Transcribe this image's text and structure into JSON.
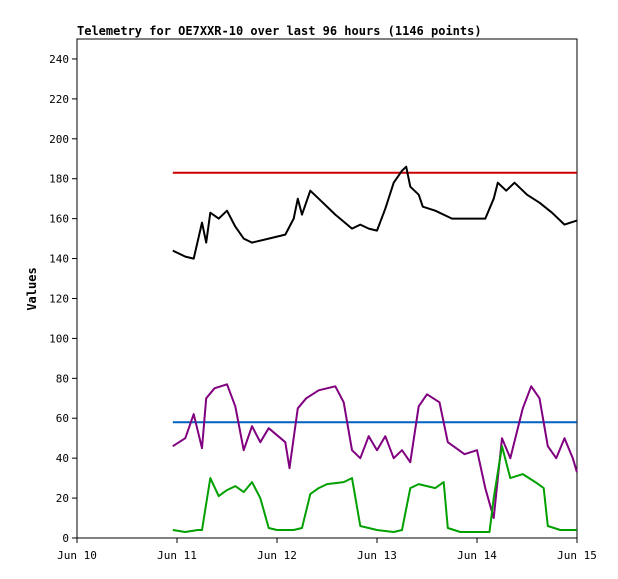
{
  "chart_data": {
    "type": "line",
    "title": "Telemetry for OE7XXR-10 over last 96 hours (1146 points)",
    "xlabel": "",
    "ylabel": "Values",
    "ylim": [
      0,
      250
    ],
    "xlim": [
      "Jun 10",
      "Jun 15"
    ],
    "x_ticks": [
      "Jun 10",
      "Jun 11",
      "Jun 12",
      "Jun 13",
      "Jun 14",
      "Jun 15"
    ],
    "y_ticks": [
      0,
      20,
      40,
      60,
      80,
      100,
      120,
      140,
      160,
      180,
      200,
      220,
      240
    ],
    "grid": false,
    "legend": "none",
    "series": [
      {
        "color": "#cc0000",
        "points": [
          [
            "Jun 10 23:00",
            183
          ],
          [
            "Jun 14 23:58",
            183
          ]
        ]
      },
      {
        "color": "#0060c0",
        "points": [
          [
            "Jun 10 23:00",
            58
          ],
          [
            "Jun 14 23:58",
            58
          ]
        ]
      },
      {
        "color": "#000000",
        "points": [
          [
            "Jun 10 23:00",
            144
          ],
          [
            "Jun 11 02:00",
            141
          ],
          [
            "Jun 11 04:00",
            140
          ],
          [
            "Jun 11 06:00",
            158
          ],
          [
            "Jun 11 07:00",
            148
          ],
          [
            "Jun 11 08:00",
            163
          ],
          [
            "Jun 11 10:00",
            160
          ],
          [
            "Jun 11 12:00",
            164
          ],
          [
            "Jun 11 14:00",
            156
          ],
          [
            "Jun 11 16:00",
            150
          ],
          [
            "Jun 11 18:00",
            148
          ],
          [
            "Jun 11 22:00",
            150
          ],
          [
            "Jun 12 02:00",
            152
          ],
          [
            "Jun 12 04:00",
            160
          ],
          [
            "Jun 12 05:00",
            170
          ],
          [
            "Jun 12 06:00",
            162
          ],
          [
            "Jun 12 08:00",
            174
          ],
          [
            "Jun 12 10:00",
            170
          ],
          [
            "Jun 12 14:00",
            162
          ],
          [
            "Jun 12 18:00",
            155
          ],
          [
            "Jun 12 20:00",
            157
          ],
          [
            "Jun 12 22:00",
            155
          ],
          [
            "Jun 13 00:00",
            154
          ],
          [
            "Jun 13 02:00",
            165
          ],
          [
            "Jun 13 04:00",
            178
          ],
          [
            "Jun 13 06:00",
            184
          ],
          [
            "Jun 13 07:00",
            186
          ],
          [
            "Jun 13 08:00",
            176
          ],
          [
            "Jun 13 10:00",
            172
          ],
          [
            "Jun 13 11:00",
            166
          ],
          [
            "Jun 13 14:00",
            164
          ],
          [
            "Jun 13 18:00",
            160
          ],
          [
            "Jun 13 22:00",
            160
          ],
          [
            "Jun 14 02:00",
            160
          ],
          [
            "Jun 14 04:00",
            170
          ],
          [
            "Jun 14 05:00",
            178
          ],
          [
            "Jun 14 07:00",
            174
          ],
          [
            "Jun 14 09:00",
            178
          ],
          [
            "Jun 14 12:00",
            172
          ],
          [
            "Jun 14 15:00",
            168
          ],
          [
            "Jun 14 18:00",
            163
          ],
          [
            "Jun 14 21:00",
            157
          ],
          [
            "Jun 14 23:58",
            159
          ]
        ]
      },
      {
        "color": "#800080",
        "points": [
          [
            "Jun 10 23:00",
            46
          ],
          [
            "Jun 11 02:00",
            50
          ],
          [
            "Jun 11 04:00",
            62
          ],
          [
            "Jun 11 06:00",
            45
          ],
          [
            "Jun 11 07:00",
            70
          ],
          [
            "Jun 11 09:00",
            75
          ],
          [
            "Jun 11 12:00",
            77
          ],
          [
            "Jun 11 14:00",
            66
          ],
          [
            "Jun 11 16:00",
            44
          ],
          [
            "Jun 11 18:00",
            56
          ],
          [
            "Jun 11 20:00",
            48
          ],
          [
            "Jun 11 22:00",
            55
          ],
          [
            "Jun 12 02:00",
            48
          ],
          [
            "Jun 12 03:00",
            35
          ],
          [
            "Jun 12 05:00",
            65
          ],
          [
            "Jun 12 07:00",
            70
          ],
          [
            "Jun 12 10:00",
            74
          ],
          [
            "Jun 12 14:00",
            76
          ],
          [
            "Jun 12 16:00",
            68
          ],
          [
            "Jun 12 18:00",
            44
          ],
          [
            "Jun 12 20:00",
            40
          ],
          [
            "Jun 12 22:00",
            51
          ],
          [
            "Jun 13 00:00",
            44
          ],
          [
            "Jun 13 02:00",
            51
          ],
          [
            "Jun 13 04:00",
            40
          ],
          [
            "Jun 13 06:00",
            44
          ],
          [
            "Jun 13 08:00",
            38
          ],
          [
            "Jun 13 10:00",
            66
          ],
          [
            "Jun 13 12:00",
            72
          ],
          [
            "Jun 13 15:00",
            68
          ],
          [
            "Jun 13 17:00",
            48
          ],
          [
            "Jun 13 19:00",
            45
          ],
          [
            "Jun 13 21:00",
            42
          ],
          [
            "Jun 14 00:00",
            44
          ],
          [
            "Jun 14 02:00",
            25
          ],
          [
            "Jun 14 04:00",
            10
          ],
          [
            "Jun 14 06:00",
            50
          ],
          [
            "Jun 14 08:00",
            40
          ],
          [
            "Jun 14 11:00",
            65
          ],
          [
            "Jun 14 13:00",
            76
          ],
          [
            "Jun 14 15:00",
            70
          ],
          [
            "Jun 14 17:00",
            46
          ],
          [
            "Jun 14 19:00",
            40
          ],
          [
            "Jun 14 21:00",
            50
          ],
          [
            "Jun 14 23:00",
            40
          ],
          [
            "Jun 14 23:58",
            33
          ]
        ]
      },
      {
        "color": "#00a000",
        "points": [
          [
            "Jun 10 23:00",
            4
          ],
          [
            "Jun 11 02:00",
            3
          ],
          [
            "Jun 11 05:00",
            4
          ],
          [
            "Jun 11 06:00",
            4
          ],
          [
            "Jun 11 08:00",
            30
          ],
          [
            "Jun 11 10:00",
            21
          ],
          [
            "Jun 11 12:00",
            24
          ],
          [
            "Jun 11 14:00",
            26
          ],
          [
            "Jun 11 16:00",
            23
          ],
          [
            "Jun 11 18:00",
            28
          ],
          [
            "Jun 11 20:00",
            20
          ],
          [
            "Jun 11 22:00",
            5
          ],
          [
            "Jun 12 00:00",
            4
          ],
          [
            "Jun 12 04:00",
            4
          ],
          [
            "Jun 12 06:00",
            5
          ],
          [
            "Jun 12 08:00",
            22
          ],
          [
            "Jun 12 10:00",
            25
          ],
          [
            "Jun 12 12:00",
            27
          ],
          [
            "Jun 12 16:00",
            28
          ],
          [
            "Jun 12 18:00",
            30
          ],
          [
            "Jun 12 20:00",
            6
          ],
          [
            "Jun 13 00:00",
            4
          ],
          [
            "Jun 13 04:00",
            3
          ],
          [
            "Jun 13 06:00",
            4
          ],
          [
            "Jun 13 08:00",
            25
          ],
          [
            "Jun 13 10:00",
            27
          ],
          [
            "Jun 13 12:00",
            26
          ],
          [
            "Jun 13 14:00",
            25
          ],
          [
            "Jun 13 16:00",
            28
          ],
          [
            "Jun 13 17:00",
            5
          ],
          [
            "Jun 13 20:00",
            3
          ],
          [
            "Jun 14 00:00",
            3
          ],
          [
            "Jun 14 03:00",
            3
          ],
          [
            "Jun 14 04:00",
            20
          ],
          [
            "Jun 14 06:00",
            46
          ],
          [
            "Jun 14 08:00",
            30
          ],
          [
            "Jun 14 11:00",
            32
          ],
          [
            "Jun 14 14:00",
            28
          ],
          [
            "Jun 14 16:00",
            25
          ],
          [
            "Jun 14 17:00",
            6
          ],
          [
            "Jun 14 20:00",
            4
          ],
          [
            "Jun 14 23:58",
            4
          ]
        ]
      }
    ]
  }
}
